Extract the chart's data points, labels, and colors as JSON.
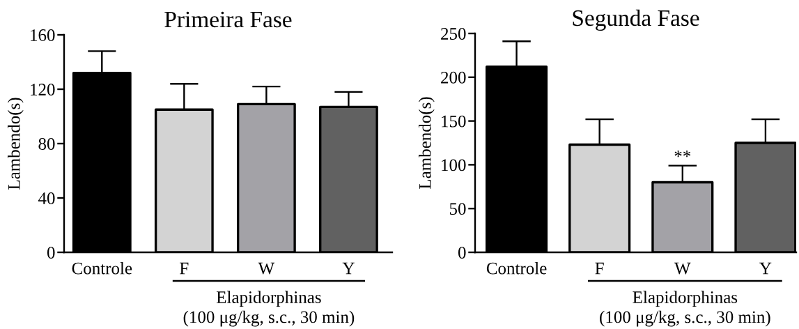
{
  "chart_data": [
    {
      "type": "bar",
      "title": "Primeira Fase",
      "ylabel": "Lambendo(s)",
      "categories": [
        "Controle",
        "F",
        "W",
        "Y"
      ],
      "values": [
        132,
        105,
        109,
        107
      ],
      "colors": [
        "#000000",
        "#d3d3d3",
        "#a3a2a7",
        "#616161"
      ],
      "errors": [
        [
          132,
          148
        ],
        [
          105,
          124
        ],
        [
          109,
          122
        ],
        [
          107,
          118
        ]
      ],
      "ylim": [
        0,
        160
      ],
      "yticks": [
        0,
        40,
        80,
        120,
        160
      ],
      "annotations": [
        "Elapidorphinas",
        "(100 μg/kg, s.c., 30 min)"
      ]
    },
    {
      "type": "bar",
      "title": "Segunda Fase",
      "ylabel": "Lambendo(s)",
      "categories": [
        "Controle",
        "F",
        "W",
        "Y"
      ],
      "values": [
        212,
        123,
        80,
        125
      ],
      "colors": [
        "#000000",
        "#d3d3d3",
        "#a3a2a7",
        "#616161"
      ],
      "errors": [
        [
          212,
          241
        ],
        [
          123,
          152
        ],
        [
          80,
          99
        ],
        [
          125,
          152
        ]
      ],
      "ylim": [
        0,
        250
      ],
      "yticks": [
        0,
        50,
        100,
        150,
        200,
        250
      ],
      "annotations": [
        {
          "text": "**",
          "x": "W",
          "y": 99
        },
        "Elapidorphinas",
        "(100 μg/kg, s.c., 30 min)"
      ]
    }
  ]
}
